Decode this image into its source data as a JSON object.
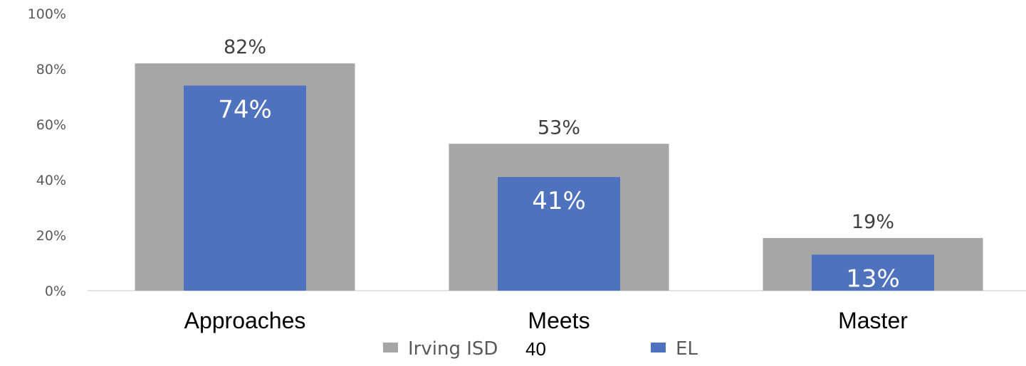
{
  "chart_data": {
    "type": "bar",
    "categories": [
      "Approaches",
      "Meets",
      "Master"
    ],
    "series": [
      {
        "name": "Irving ISD",
        "values": [
          82,
          53,
          19
        ],
        "color": "#a6a6a6"
      },
      {
        "name": "EL",
        "values": [
          74,
          41,
          13
        ],
        "color": "#4f72be"
      }
    ],
    "ylim": [
      0,
      100
    ],
    "yticks": [
      0,
      20,
      40,
      60,
      80,
      100
    ],
    "tick_suffix": "%",
    "grid": false,
    "legend_position": "bottom",
    "overlapped_bars": true
  },
  "page_number": "40"
}
